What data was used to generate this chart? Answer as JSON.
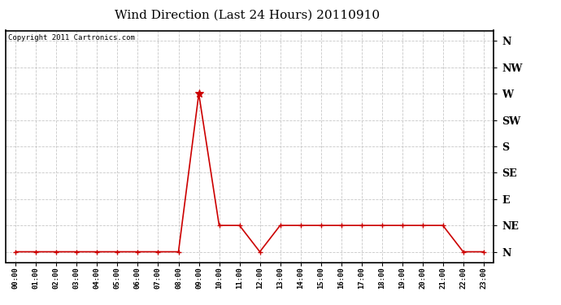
{
  "title": "Wind Direction (Last 24 Hours) 20110910",
  "copyright_text": "Copyright 2011 Cartronics.com",
  "background_color": "#ffffff",
  "plot_bg_color": "#ffffff",
  "grid_color": "#c8c8c8",
  "line_color": "#cc0000",
  "marker_color": "#cc0000",
  "x_labels": [
    "00:00",
    "01:00",
    "02:00",
    "03:00",
    "04:00",
    "05:00",
    "06:00",
    "07:00",
    "08:00",
    "09:00",
    "10:00",
    "11:00",
    "12:00",
    "13:00",
    "14:00",
    "15:00",
    "16:00",
    "17:00",
    "18:00",
    "19:00",
    "20:00",
    "21:00",
    "22:00",
    "23:00"
  ],
  "y_ticks": [
    0,
    45,
    90,
    135,
    180,
    225,
    270,
    315,
    360
  ],
  "y_labels": [
    "N",
    "NE",
    "E",
    "SE",
    "S",
    "SW",
    "W",
    "NW",
    "N"
  ],
  "ylim": [
    -18,
    378
  ],
  "data": [
    0,
    0,
    0,
    0,
    0,
    0,
    0,
    0,
    0,
    270,
    45,
    45,
    0,
    45,
    45,
    45,
    45,
    45,
    45,
    45,
    45,
    45,
    0,
    0
  ]
}
